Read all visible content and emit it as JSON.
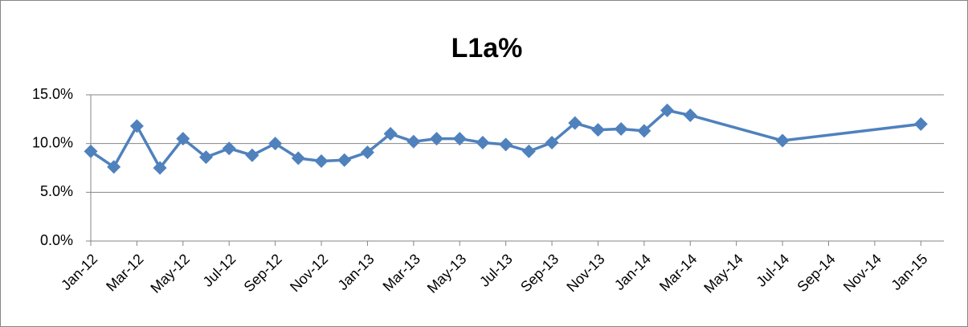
{
  "chart_data": {
    "type": "line",
    "title": "L1a%",
    "x": [
      "2012-01",
      "2012-02",
      "2012-03",
      "2012-04",
      "2012-05",
      "2012-06",
      "2012-07",
      "2012-08",
      "2012-09",
      "2012-10",
      "2012-11",
      "2012-12",
      "2013-01",
      "2013-02",
      "2013-03",
      "2013-04",
      "2013-05",
      "2013-06",
      "2013-07",
      "2013-08",
      "2013-09",
      "2013-10",
      "2013-11",
      "2013-12",
      "2014-01",
      "2014-02",
      "2014-03",
      "2014-07",
      "2015-01"
    ],
    "series": [
      {
        "name": "L1a%",
        "color": "#4f81bd",
        "values": [
          9.2,
          7.6,
          11.8,
          7.5,
          10.5,
          8.6,
          9.5,
          8.8,
          10.0,
          8.5,
          8.2,
          8.3,
          9.1,
          11.0,
          10.2,
          10.5,
          10.5,
          10.1,
          9.9,
          9.2,
          10.1,
          12.1,
          11.4,
          11.5,
          11.3,
          13.4,
          12.9,
          10.3,
          12.0
        ]
      }
    ],
    "xlim": [
      "2012-01",
      "2015-02"
    ],
    "xticks": [
      {
        "value": "2012-01",
        "label": "Jan-12"
      },
      {
        "value": "2012-03",
        "label": "Mar-12"
      },
      {
        "value": "2012-05",
        "label": "May-12"
      },
      {
        "value": "2012-07",
        "label": "Jul-12"
      },
      {
        "value": "2012-09",
        "label": "Sep-12"
      },
      {
        "value": "2012-11",
        "label": "Nov-12"
      },
      {
        "value": "2013-01",
        "label": "Jan-13"
      },
      {
        "value": "2013-03",
        "label": "Mar-13"
      },
      {
        "value": "2013-05",
        "label": "May-13"
      },
      {
        "value": "2013-07",
        "label": "Jul-13"
      },
      {
        "value": "2013-09",
        "label": "Sep-13"
      },
      {
        "value": "2013-11",
        "label": "Nov-13"
      },
      {
        "value": "2014-01",
        "label": "Jan-14"
      },
      {
        "value": "2014-03",
        "label": "Mar-14"
      },
      {
        "value": "2014-05",
        "label": "May-14"
      },
      {
        "value": "2014-07",
        "label": "Jul-14"
      },
      {
        "value": "2014-09",
        "label": "Sep-14"
      },
      {
        "value": "2014-11",
        "label": "Nov-14"
      },
      {
        "value": "2015-01",
        "label": "Jan-15"
      }
    ],
    "ylim": [
      0,
      15
    ],
    "yticks": [
      {
        "value": 0,
        "label": "0.0%"
      },
      {
        "value": 5,
        "label": "5.0%"
      },
      {
        "value": 10,
        "label": "10.0%"
      },
      {
        "value": 15,
        "label": "15.0%"
      }
    ],
    "grid": true
  }
}
